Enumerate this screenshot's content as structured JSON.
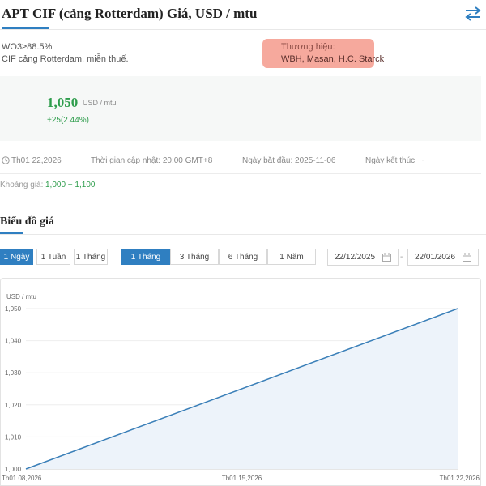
{
  "header": {
    "title": "APT CIF (cảng Rotterdam) Giá, USD / mtu",
    "swap_icon": "swap-arrows-icon",
    "accent": "#2f7fc1"
  },
  "specs": {
    "purity": "WO3≥88.5%",
    "terms": "CIF cảng Rotterdam, miễn thuế.",
    "brand_label": "Thương hiệu:",
    "brand_value": "WBH, Masan, H.C. Starck",
    "highlight_color": "#f6a99d"
  },
  "price": {
    "value": "1,050",
    "unit": "USD / mtu",
    "change": "+25(2.44%)",
    "color": "#2e9d4c"
  },
  "info": {
    "date": "Th01 22,2026",
    "updated": "Thời gian cập nhật: 20:00 GMT+8",
    "start": "Ngày bắt đầu: 2025-11-06",
    "end": "Ngày kết thúc: ~",
    "range_label": "Khoảng giá:",
    "range_value": "1,000 ~ 1,100"
  },
  "chart_section": {
    "title": "Biểu đồ giá",
    "interval_buttons": [
      "1 Ngày",
      "1 Tuần",
      "1 Tháng"
    ],
    "interval_active": "1 Ngày",
    "period_buttons": [
      "1 Tháng",
      "3 Tháng",
      "6 Tháng",
      "1 Năm"
    ],
    "period_active": "1 Tháng",
    "date_from": "22/12/2025",
    "date_to": "22/01/2026",
    "dash": "-"
  },
  "chart_data": {
    "type": "area",
    "ylabel": "USD / mtu",
    "x": [
      "Th01 08,2026",
      "Th01 22,2026"
    ],
    "values": [
      1000,
      1050
    ],
    "x_ticks": [
      "Th01 08,2026",
      "Th01 15,2026",
      "Th01 22,2026"
    ],
    "y_ticks": [
      "1,000",
      "1,010",
      "1,020",
      "1,030",
      "1,040",
      "1,050"
    ],
    "ylim": [
      1000,
      1050
    ],
    "line_color": "#3a7fb8",
    "fill_color": "#edf3fa",
    "grid": true
  }
}
